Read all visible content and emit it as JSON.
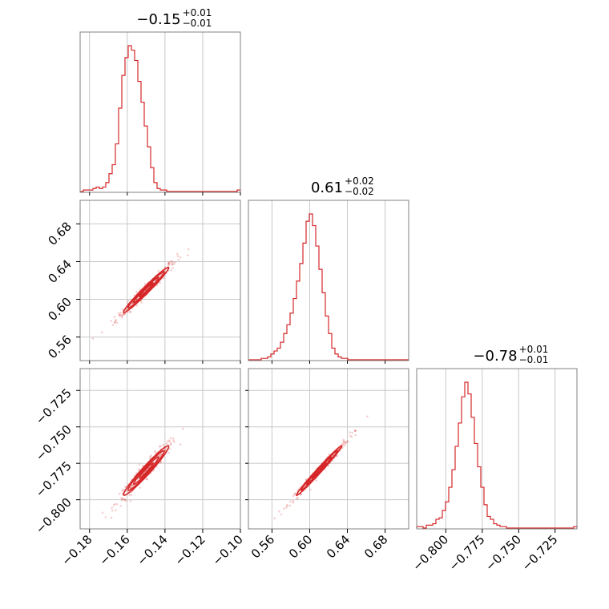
{
  "colors": {
    "series": "#d62728",
    "grid": "#c8c8c8",
    "frame": "#808080"
  },
  "chart_data": {
    "type": "corner",
    "parameters": [
      {
        "title_main": "−0.15",
        "title_plus": "+0.01",
        "title_minus": "−0.01",
        "range": [
          -0.185,
          -0.1
        ],
        "ticks": [
          -0.18,
          -0.16,
          -0.14,
          -0.12,
          -0.1
        ],
        "tick_labels": [
          "−0.18",
          "−0.16",
          "−0.14",
          "−0.12",
          "−0.10"
        ],
        "hist_bin_edges_start": -0.185,
        "hist_bin_width": 0.0017,
        "hist_counts": [
          0,
          1,
          1,
          1,
          2,
          3,
          2,
          3,
          6,
          12,
          18,
          32,
          56,
          78,
          90,
          98,
          95,
          88,
          74,
          60,
          44,
          30,
          16,
          6,
          2,
          1,
          1,
          0,
          0,
          0,
          0,
          0,
          0,
          0,
          0,
          0,
          0,
          0,
          0,
          0,
          0,
          0,
          0,
          0,
          0,
          0,
          0,
          0,
          0,
          1
        ]
      },
      {
        "title_main": "0.61",
        "title_plus": "+0.02",
        "title_minus": "−0.02",
        "range": [
          0.535,
          0.705
        ],
        "ticks": [
          0.56,
          0.6,
          0.64,
          0.68
        ],
        "tick_labels": [
          "0.56",
          "0.60",
          "0.64",
          "0.68"
        ],
        "hist_bin_edges_start": 0.535,
        "hist_bin_width": 0.0034,
        "hist_counts": [
          0,
          0,
          0,
          0,
          1,
          1,
          2,
          4,
          6,
          8,
          12,
          18,
          24,
          32,
          42,
          54,
          66,
          80,
          95,
          100,
          92,
          78,
          62,
          46,
          30,
          18,
          8,
          4,
          2,
          1,
          1,
          0,
          0,
          0,
          0,
          0,
          0,
          0,
          0,
          0,
          0,
          0,
          0,
          0,
          0,
          0,
          0,
          0,
          0,
          0
        ]
      },
      {
        "title_main": "−0.78",
        "title_plus": "+0.01",
        "title_minus": "−0.01",
        "range": [
          -0.82,
          -0.71
        ],
        "ticks": [
          -0.8,
          -0.775,
          -0.75,
          -0.725
        ],
        "tick_labels": [
          "−0.800",
          "−0.775",
          "−0.750",
          "−0.725"
        ],
        "hist_bin_edges_start": -0.82,
        "hist_bin_width": 0.0022,
        "hist_counts": [
          1,
          1,
          0,
          2,
          2,
          3,
          6,
          7,
          12,
          18,
          28,
          40,
          56,
          72,
          90,
          100,
          92,
          76,
          58,
          42,
          28,
          16,
          8,
          6,
          3,
          2,
          1,
          1,
          0,
          0,
          0,
          0,
          0,
          0,
          0,
          0,
          0,
          0,
          0,
          0,
          0,
          0,
          0,
          0,
          0,
          0,
          0,
          0,
          0,
          1
        ]
      }
    ],
    "correlations": {
      "p0_p1": 0.98,
      "p0_p2": 0.97,
      "p1_p2": 0.99
    },
    "grid": true
  }
}
